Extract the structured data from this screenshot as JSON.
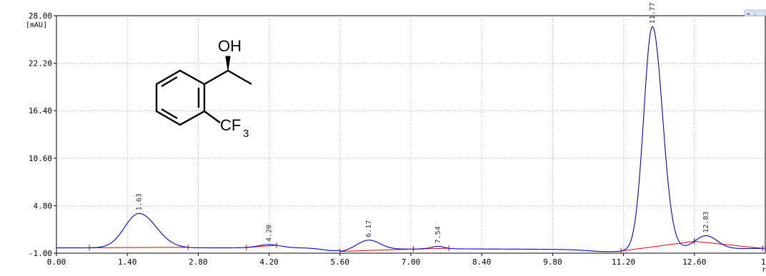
{
  "chart_data": {
    "type": "line",
    "title": "",
    "xlabel": "",
    "ylabel": "",
    "y_unit_label": "[mAU]",
    "xlim": [
      0.0,
      14.0
    ],
    "ylim": [
      -1.0,
      28.0
    ],
    "x_ticks": [
      "0.00",
      "1.40",
      "2.80",
      "4.20",
      "5.60",
      "7.00",
      "8.40",
      "9.80",
      "11.20",
      "12.60"
    ],
    "x_tick_values": [
      0.0,
      1.4,
      2.8,
      4.2,
      5.6,
      7.0,
      8.4,
      9.8,
      11.2,
      12.6
    ],
    "x_tick_partial": "1",
    "x_unit_partial": "r",
    "y_ticks": [
      "28.00",
      "22.20",
      "16.40",
      "10.60",
      "4.80",
      "-1.00"
    ],
    "y_tick_values": [
      28.0,
      22.2,
      16.4,
      10.6,
      4.8,
      -1.0
    ],
    "grid": true,
    "series": [
      {
        "color": "#0000cc"
      }
    ],
    "peaks": [
      {
        "rt": 1.63,
        "label": "1.63",
        "height": 4.2,
        "width": 0.28
      },
      {
        "rt": 4.2,
        "label": "4.20",
        "height": 0.4,
        "width": 0.22
      },
      {
        "rt": 6.17,
        "label": "6.17",
        "height": 1.1,
        "width": 0.22
      },
      {
        "rt": 7.54,
        "label": "7.54",
        "height": 0.3,
        "width": 0.12
      },
      {
        "rt": 11.77,
        "label": "11.77",
        "height": 27.2,
        "width": 0.17
      },
      {
        "rt": 12.83,
        "label": "12.83",
        "height": 1.6,
        "width": 0.22
      }
    ],
    "baseline_segments": [
      [
        0.65,
        2.6
      ],
      [
        3.75,
        4.35
      ],
      [
        5.6,
        7.05
      ],
      [
        7.05,
        7.75
      ],
      [
        11.15,
        12.6
      ],
      [
        12.6,
        13.95
      ]
    ],
    "baseline_color": "#dd0000"
  },
  "structure": {
    "oh_label": "OH",
    "cf_label": "CF",
    "cf_subscript": "3"
  },
  "scroll_buttons": [
    "◄",
    "►"
  ]
}
